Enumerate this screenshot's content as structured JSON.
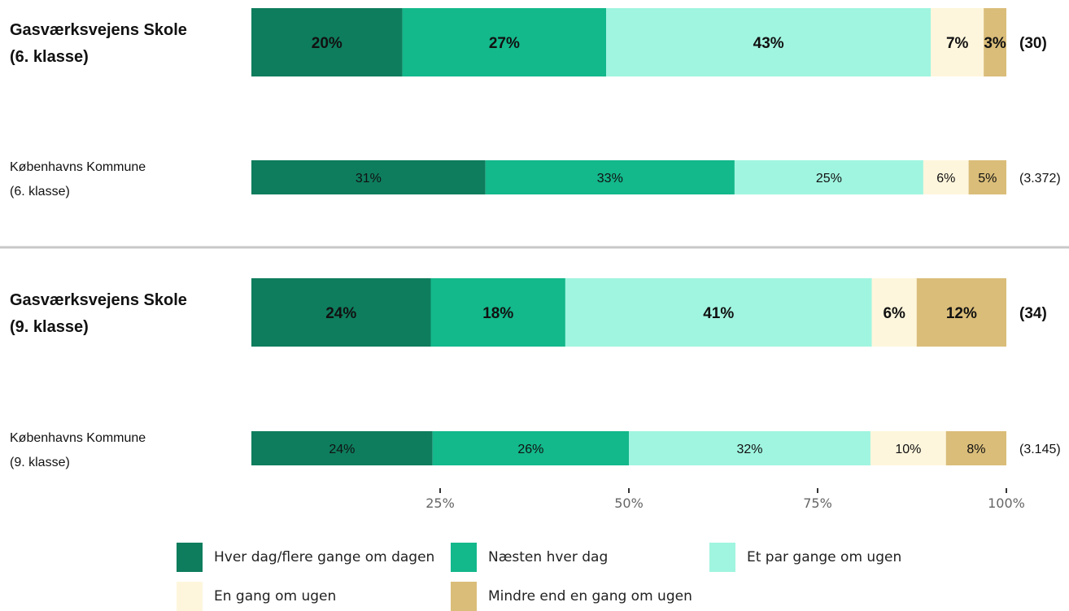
{
  "chart_data": {
    "type": "bar",
    "orientation": "horizontal",
    "stacked": true,
    "categories": [
      "Hver dag/flere gange om dagen",
      "Næsten hver dag",
      "Et par gange om ugen",
      "En gang om ugen",
      "Mindre end en gang om ugen"
    ],
    "colors": [
      "#0e7d5d",
      "#13b88b",
      "#a0f5e0",
      "#fef6dc",
      "#dabd79"
    ],
    "rows": [
      {
        "label_line1": "Gasværksvejens Skole",
        "label_line2": "(6. klasse)",
        "bold": true,
        "n": "(30)",
        "values": [
          20,
          27,
          43,
          7,
          3
        ],
        "labels": [
          "20%",
          "27%",
          "43%",
          "7%",
          "3%"
        ]
      },
      {
        "label_line1": "Københavns Kommune",
        "label_line2": "(6. klasse)",
        "bold": false,
        "n": "(3.372)",
        "values": [
          31,
          33,
          25,
          6,
          5
        ],
        "labels": [
          "31%",
          "33%",
          "25%",
          "6%",
          "5%"
        ]
      },
      {
        "label_line1": "Gasværksvejens Skole",
        "label_line2": "(9. klasse)",
        "bold": true,
        "n": "(34)",
        "values": [
          24,
          18,
          41,
          6,
          12
        ],
        "labels": [
          "24%",
          "18%",
          "41%",
          "6%",
          "12%"
        ]
      },
      {
        "label_line1": "Københavns Kommune",
        "label_line2": "(9. klasse)",
        "bold": false,
        "n": "(3.145)",
        "values": [
          24,
          26,
          32,
          10,
          8
        ],
        "labels": [
          "24%",
          "26%",
          "32%",
          "10%",
          "8%"
        ]
      }
    ],
    "x_ticks": [
      "25%",
      "50%",
      "75%",
      "100%"
    ],
    "x_tick_values": [
      25,
      50,
      75,
      100
    ],
    "xlim": [
      0,
      100
    ],
    "legend_position": "bottom"
  }
}
